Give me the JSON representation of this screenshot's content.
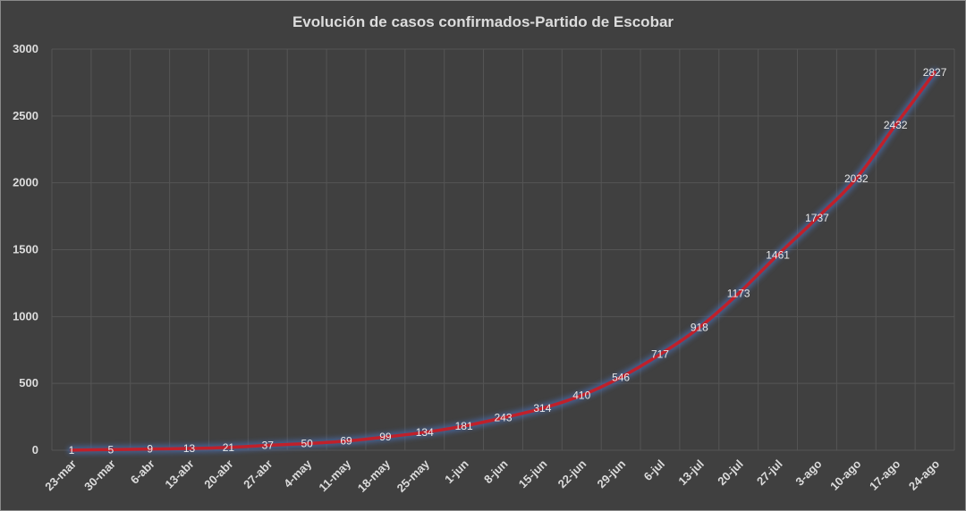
{
  "chart_data": {
    "type": "line",
    "title": "Evolución  de casos confirmados-Partido  de Escobar",
    "categories": [
      "23-mar",
      "30-mar",
      "6-abr",
      "13-abr",
      "20-abr",
      "27-abr",
      "4-may",
      "11-may",
      "18-may",
      "25-may",
      "1-jun",
      "8-jun",
      "15-jun",
      "22-jun",
      "29-jun",
      "6-jul",
      "13-jul",
      "20-jul",
      "27-jul",
      "3-ago",
      "10-ago",
      "17-ago",
      "24-ago"
    ],
    "values": [
      1,
      5,
      9,
      13,
      21,
      37,
      50,
      69,
      99,
      134,
      181,
      243,
      314,
      410,
      546,
      717,
      918,
      1173,
      1461,
      1737,
      2032,
      2432,
      2827
    ],
    "ylim": [
      0,
      3000
    ],
    "yticks": [
      "0",
      "500",
      "1000",
      "1500",
      "2000",
      "2500",
      "3000"
    ],
    "grid": true,
    "legend": "none",
    "colors": {
      "background": "#404040",
      "line": "#c0202a",
      "glow": "#4a6aa8",
      "grid": "#555555",
      "text": "#dcdcdc"
    }
  }
}
